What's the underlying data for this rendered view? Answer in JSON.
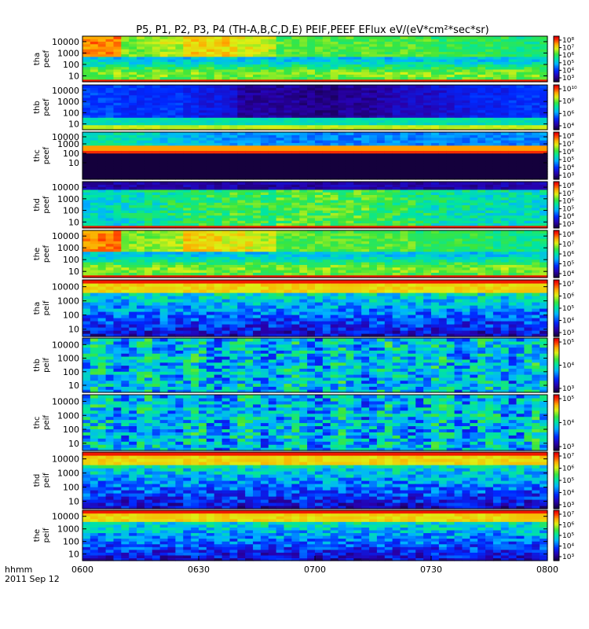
{
  "chart_data": {
    "type": "heatmap",
    "title": "P5, P1, P2, P3, P4 (TH-A,B,C,D,E) PEIF,PEEF EFlux eV/(eV*cm²*sec*sr)",
    "time_axis": {
      "ticks": [
        "0600",
        "0630",
        "0700",
        "0730",
        "0800"
      ],
      "label_line1": "hhmm",
      "label_line2": "2011 Sep 12"
    },
    "y_ticks": [
      "10000",
      "1000",
      "100",
      "10"
    ],
    "panels": [
      {
        "label_top": "tha",
        "label_bottom": "peef",
        "cbar_ticks": [
          "10⁸",
          "10⁷",
          "10⁶",
          "10⁵",
          "10⁴",
          "10³"
        ],
        "cbar_range_exp": [
          3,
          8.5
        ],
        "levels": [
          2,
          2,
          7,
          7,
          6,
          4,
          4,
          4,
          5,
          6,
          8,
          8,
          8,
          8,
          8,
          8,
          8,
          8,
          9,
          9,
          9,
          9,
          10,
          10
        ],
        "profile": "electron_a"
      },
      {
        "label_top": "thb",
        "label_bottom": "peef",
        "cbar_ticks": [
          "10¹⁰",
          "10⁸",
          "10⁶",
          "10⁴"
        ],
        "cbar_range_exp": [
          3,
          10.5
        ],
        "levels": [
          8,
          8,
          7,
          7,
          7,
          6,
          5,
          4,
          1,
          1,
          1,
          0,
          0,
          1,
          1,
          2,
          3,
          3,
          4,
          5,
          6,
          6,
          7,
          7
        ],
        "profile": "electron_b"
      },
      {
        "label_top": "thc",
        "label_bottom": "peef",
        "cbar_ticks": [
          "10⁸",
          "10⁷",
          "10⁶",
          "10⁵",
          "10⁴",
          "10³"
        ],
        "cbar_range_exp": [
          3,
          8.5
        ],
        "levels": [
          2,
          2,
          3,
          4,
          6,
          7,
          8,
          9,
          9,
          10,
          10,
          10,
          10,
          10,
          10,
          10,
          10,
          10,
          10,
          10,
          10,
          10,
          10,
          10
        ],
        "profile": "electron_c"
      },
      {
        "label_top": "thd",
        "label_bottom": "peef",
        "cbar_ticks": [
          "10⁸",
          "10⁷",
          "10⁶",
          "10⁵",
          "10⁴",
          "10³"
        ],
        "cbar_range_exp": [
          3,
          8.5
        ],
        "levels": [
          1,
          1,
          2,
          3,
          4,
          5,
          5,
          6,
          6,
          6,
          7,
          7,
          7,
          7,
          7,
          6,
          5,
          4,
          3,
          3,
          2,
          2,
          2,
          1
        ],
        "profile": "electron_d"
      },
      {
        "label_top": "the",
        "label_bottom": "peef",
        "cbar_ticks": [
          "10⁸",
          "10⁷",
          "10⁶",
          "10⁵",
          "10⁴"
        ],
        "cbar_range_exp": [
          3.5,
          8.5
        ],
        "levels": [
          2,
          2,
          7,
          7,
          6,
          4,
          4,
          5,
          5,
          6,
          8,
          8,
          8,
          8,
          8,
          8,
          8,
          9,
          9,
          9,
          9,
          10,
          10,
          10
        ],
        "profile": "electron_a"
      },
      {
        "label_top": "tha",
        "label_bottom": "peif",
        "cbar_ticks": [
          "10⁷",
          "10⁶",
          "10⁵",
          "10⁴",
          "10³"
        ],
        "cbar_range_exp": [
          2.8,
          7.2
        ],
        "levels": [
          9,
          9,
          8,
          8,
          7,
          7,
          6,
          6,
          5,
          4,
          3,
          2,
          2,
          2,
          2,
          2,
          1,
          1,
          1,
          2,
          2,
          2,
          2,
          2
        ],
        "profile": "ion"
      },
      {
        "label_top": "thb",
        "label_bottom": "peif",
        "cbar_ticks": [
          "10⁵",
          "10⁴",
          "10³"
        ],
        "cbar_range_exp": [
          2.5,
          5.5
        ],
        "levels": [
          9,
          8,
          7,
          6,
          5,
          4,
          3,
          2,
          2,
          1,
          1,
          1,
          1,
          1,
          2,
          2,
          3,
          3,
          4,
          5,
          6,
          7,
          8,
          9
        ],
        "profile": "banded"
      },
      {
        "label_top": "thc",
        "label_bottom": "peif",
        "cbar_ticks": [
          "10⁵",
          "10⁴",
          "10³"
        ],
        "cbar_range_exp": [
          2.5,
          5.5
        ],
        "levels": [
          9,
          8,
          7,
          6,
          5,
          4,
          3,
          2,
          2,
          1,
          1,
          1,
          1,
          1,
          2,
          2,
          3,
          3,
          4,
          5,
          6,
          7,
          8,
          9
        ],
        "profile": "banded"
      },
      {
        "label_top": "thd",
        "label_bottom": "peif",
        "cbar_ticks": [
          "10⁷",
          "10⁶",
          "10⁵",
          "10⁴",
          "10³"
        ],
        "cbar_range_exp": [
          2.8,
          7.2
        ],
        "levels": [
          9,
          9,
          8,
          8,
          7,
          7,
          6,
          6,
          5,
          4,
          3,
          2,
          2,
          2,
          2,
          2,
          1,
          1,
          1,
          2,
          2,
          2,
          2,
          2
        ],
        "profile": "ion"
      },
      {
        "label_top": "the",
        "label_bottom": "peif",
        "cbar_ticks": [
          "10⁷",
          "10⁶",
          "10⁵",
          "10⁴",
          "10³"
        ],
        "cbar_range_exp": [
          2.8,
          7.2
        ],
        "levels": [
          9,
          9,
          8,
          8,
          7,
          7,
          6,
          6,
          5,
          4,
          3,
          2,
          2,
          2,
          2,
          2,
          1,
          1,
          1,
          2,
          2,
          2,
          2,
          2
        ],
        "profile": "ion"
      }
    ]
  }
}
